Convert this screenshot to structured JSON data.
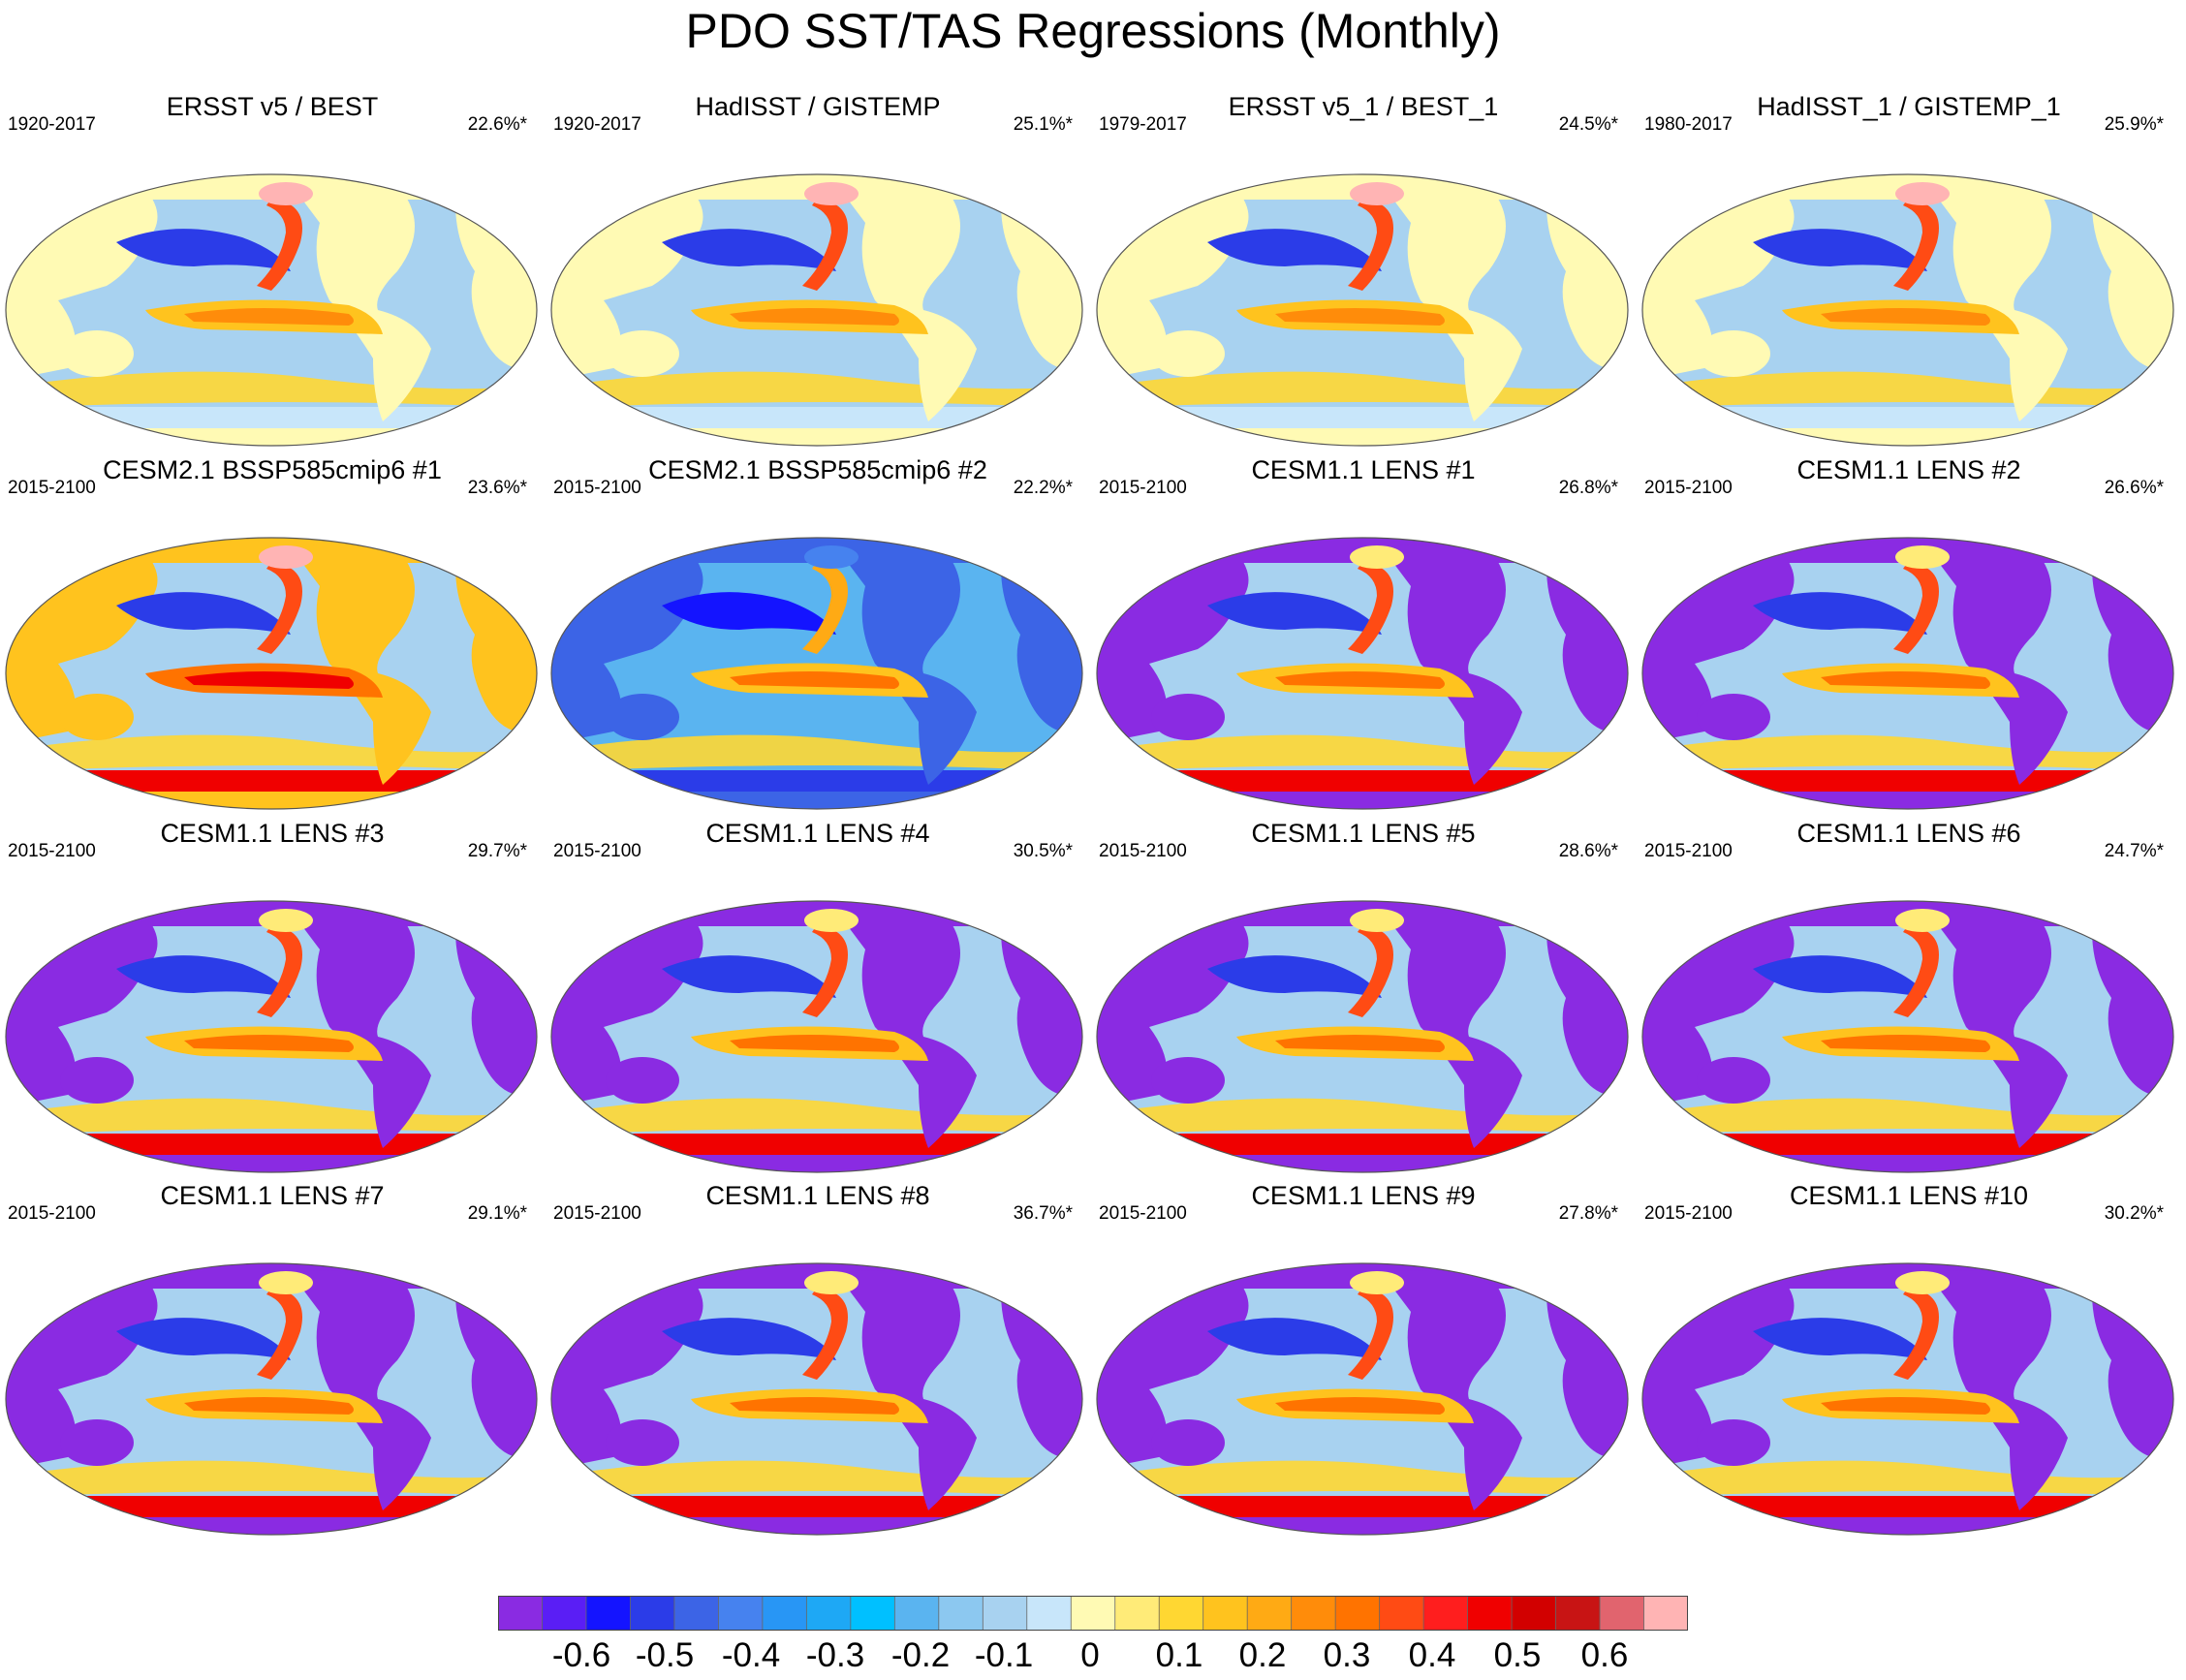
{
  "figure": {
    "title": "PDO SST/TAS Regressions (Monthly)"
  },
  "panels": [
    {
      "title": "ERSST v5 / BEST",
      "period": "1920-2017",
      "percent": "22.6%*",
      "style": "obs"
    },
    {
      "title": "HadISST / GISTEMP",
      "period": "1920-2017",
      "percent": "25.1%*",
      "style": "obs"
    },
    {
      "title": "ERSST v5_1 / BEST_1",
      "period": "1979-2017",
      "percent": "24.5%*",
      "style": "obs"
    },
    {
      "title": "HadISST_1 / GISTEMP_1",
      "period": "1980-2017",
      "percent": "25.9%*",
      "style": "obs"
    },
    {
      "title": "CESM2.1 BSSP585cmip6 #1",
      "period": "2015-2100",
      "percent": "23.6%*",
      "style": "warm"
    },
    {
      "title": "CESM2.1 BSSP585cmip6 #2",
      "period": "2015-2100",
      "percent": "22.2%*",
      "style": "cool"
    },
    {
      "title": "CESM1.1 LENS #1",
      "period": "2015-2100",
      "percent": "26.8%*",
      "style": "lens"
    },
    {
      "title": "CESM1.1 LENS #2",
      "period": "2015-2100",
      "percent": "26.6%*",
      "style": "lens"
    },
    {
      "title": "CESM1.1 LENS #3",
      "period": "2015-2100",
      "percent": "29.7%*",
      "style": "lens"
    },
    {
      "title": "CESM1.1 LENS #4",
      "period": "2015-2100",
      "percent": "30.5%*",
      "style": "lens"
    },
    {
      "title": "CESM1.1 LENS #5",
      "period": "2015-2100",
      "percent": "28.6%*",
      "style": "lens"
    },
    {
      "title": "CESM1.1 LENS #6",
      "period": "2015-2100",
      "percent": "24.7%*",
      "style": "lens"
    },
    {
      "title": "CESM1.1 LENS #7",
      "period": "2015-2100",
      "percent": "29.1%*",
      "style": "lens"
    },
    {
      "title": "CESM1.1 LENS #8",
      "period": "2015-2100",
      "percent": "36.7%*",
      "style": "lens"
    },
    {
      "title": "CESM1.1 LENS #9",
      "period": "2015-2100",
      "percent": "27.8%*",
      "style": "lens"
    },
    {
      "title": "CESM1.1 LENS #10",
      "period": "2015-2100",
      "percent": "30.2%*",
      "style": "lens"
    }
  ],
  "colorbar": {
    "colors": [
      "#8a2be2",
      "#5a1ef5",
      "#1414ff",
      "#2b3ce8",
      "#3c64e6",
      "#4682ef",
      "#2896f5",
      "#1ea8f5",
      "#00c0ff",
      "#5ab4f0",
      "#8cc8f0",
      "#a8d2f0",
      "#c8e6fa",
      "#fffab4",
      "#ffeb78",
      "#ffd732",
      "#ffc31e",
      "#ffaa14",
      "#ff8c0a",
      "#ff7300",
      "#ff4b14",
      "#ff1e1e",
      "#f00000",
      "#d20000",
      "#c81414",
      "#e1646e",
      "#ffb4b4"
    ],
    "tick_labels": [
      "-0.6",
      "-0.5",
      "-0.4",
      "-0.3",
      "-0.2",
      "-0.1",
      "0",
      "0.1",
      "0.2",
      "0.3",
      "0.4",
      "0.5",
      "0.6"
    ]
  }
}
